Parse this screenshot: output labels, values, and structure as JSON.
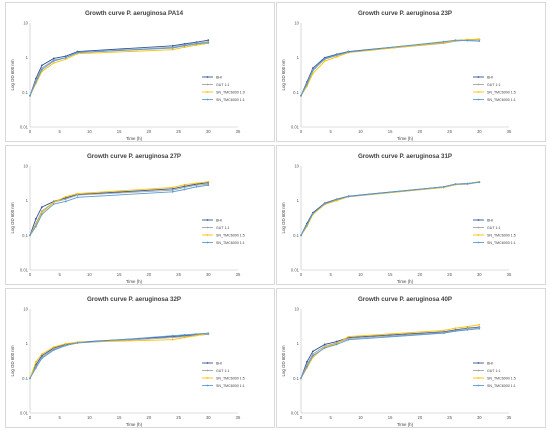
{
  "figure": {
    "charts": [
      {
        "title": "Growth curve P. aeruginosa PA14",
        "legend": [
          "BHI",
          "GUT 1:1",
          "SN_TMC6000 1:9",
          "SN_TMC6000 1:1"
        ]
      },
      {
        "title": "Growth curve P. aeruginosa 23P",
        "legend": [
          "BHI",
          "GUT 1:1",
          "SN_TMC6000 1:5",
          "SN_TMC6000 1:1"
        ]
      },
      {
        "title": "Growth curve P. aeruginosa 27P",
        "legend": [
          "BHI",
          "GUT 1:1",
          "SN_TMC6000 1:5",
          "SN_TMC6000 1:1"
        ]
      },
      {
        "title": "Growth curve P. aeruginosa 31P",
        "legend": [
          "BHI",
          "GUT 1:1",
          "SN_TMC6000 1:5",
          "SN_TMC6000 1:1"
        ]
      },
      {
        "title": "Growth curve P. aeruginosa 32P",
        "legend": [
          "BHI",
          "GUT 1:1",
          "SN_TMC6000 1:5",
          "SN_TMC6000 1:1"
        ]
      },
      {
        "title": "Growth curve P. aeruginosa 40P",
        "legend": [
          "BHI",
          "GUT 1:1",
          "SN_TMC6000 1:5",
          "SN_TMC6000 1:1"
        ]
      }
    ]
  },
  "chart_data": [
    {
      "type": "line",
      "title": "Growth curve P. aeruginosa PA14",
      "xlabel": "Time (h)",
      "ylabel": "Log OD 600 nm",
      "xlim": [
        0,
        35
      ],
      "ylim": [
        0.01,
        10
      ],
      "yscale": "log",
      "x": [
        0,
        1,
        2,
        4,
        6,
        8,
        24,
        26,
        28,
        30
      ],
      "series": [
        {
          "name": "BHI",
          "values": [
            0.08,
            0.25,
            0.6,
            0.95,
            1.1,
            1.5,
            2.2,
            2.5,
            2.8,
            3.2
          ]
        },
        {
          "name": "GUT 1:1",
          "values": [
            0.08,
            0.22,
            0.5,
            0.85,
            1.0,
            1.4,
            2.0,
            2.3,
            2.6,
            2.9
          ]
        },
        {
          "name": "SN_TMC6000 1:9",
          "values": [
            0.08,
            0.18,
            0.4,
            0.7,
            0.9,
            1.3,
            1.7,
            2.0,
            2.3,
            2.6
          ]
        },
        {
          "name": "SN_TMC6000 1:1",
          "values": [
            0.08,
            0.2,
            0.45,
            0.8,
            1.0,
            1.4,
            1.9,
            2.2,
            2.5,
            2.7
          ]
        }
      ],
      "colors": [
        "#2f5597",
        "#a5a5a5",
        "#ffc000",
        "#5b9bd5"
      ],
      "xticks": [
        0,
        5,
        10,
        15,
        20,
        25,
        30,
        35
      ],
      "yticks": [
        0.01,
        0.1,
        1,
        10
      ],
      "ytick_labels": [
        "0.01",
        "0.1",
        "1",
        "10"
      ],
      "legend_position": "right",
      "grid": false
    },
    {
      "type": "line",
      "title": "Growth curve P. aeruginosa 23P",
      "xlabel": "Time (h)",
      "ylabel": "Log OD 600 nm",
      "xlim": [
        0,
        35
      ],
      "ylim": [
        0.01,
        10
      ],
      "yscale": "log",
      "x": [
        0,
        1,
        2,
        4,
        6,
        8,
        24,
        26,
        28,
        30
      ],
      "series": [
        {
          "name": "BHI",
          "values": [
            0.08,
            0.2,
            0.5,
            1.0,
            1.25,
            1.5,
            2.8,
            3.1,
            3.3,
            3.4
          ]
        },
        {
          "name": "GUT 1:1",
          "values": [
            0.08,
            0.18,
            0.45,
            0.9,
            1.15,
            1.45,
            2.6,
            3.0,
            3.2,
            3.3
          ]
        },
        {
          "name": "SN_TMC6000 1:5",
          "values": [
            0.08,
            0.15,
            0.35,
            0.8,
            1.05,
            1.4,
            2.7,
            3.1,
            3.3,
            3.4
          ]
        },
        {
          "name": "SN_TMC6000 1:1",
          "values": [
            0.08,
            0.17,
            0.42,
            0.95,
            1.2,
            1.45,
            2.9,
            3.2,
            3.1,
            3.0
          ]
        }
      ],
      "colors": [
        "#2f5597",
        "#a5a5a5",
        "#ffc000",
        "#5b9bd5"
      ],
      "xticks": [
        0,
        5,
        10,
        15,
        20,
        25,
        30,
        35
      ],
      "yticks": [
        0.01,
        0.1,
        1,
        10
      ],
      "ytick_labels": [
        "0.01",
        "0.1",
        "1",
        "10"
      ],
      "legend_position": "right",
      "grid": false
    },
    {
      "type": "line",
      "title": "Growth curve P. aeruginosa 27P",
      "xlabel": "Time (h)",
      "ylabel": "Log OD 600 nm",
      "xlim": [
        0,
        35
      ],
      "ylim": [
        0.01,
        10
      ],
      "yscale": "log",
      "x": [
        0,
        1,
        2,
        4,
        6,
        8,
        24,
        26,
        28,
        30
      ],
      "series": [
        {
          "name": "BHI",
          "values": [
            0.1,
            0.3,
            0.65,
            0.95,
            1.2,
            1.5,
            2.2,
            2.6,
            3.0,
            3.3
          ]
        },
        {
          "name": "GUT 1:1",
          "values": [
            0.1,
            0.22,
            0.5,
            0.9,
            1.1,
            1.45,
            2.0,
            2.4,
            2.8,
            3.0
          ]
        },
        {
          "name": "SN_TMC6000 1:5",
          "values": [
            0.1,
            0.2,
            0.45,
            0.9,
            1.3,
            1.6,
            2.4,
            2.9,
            3.2,
            3.5
          ]
        },
        {
          "name": "SN_TMC6000 1:1",
          "values": [
            0.1,
            0.18,
            0.4,
            0.8,
            0.95,
            1.25,
            1.8,
            2.1,
            2.5,
            2.8
          ]
        }
      ],
      "colors": [
        "#2f5597",
        "#a5a5a5",
        "#ffc000",
        "#5b9bd5"
      ],
      "xticks": [
        0,
        5,
        10,
        15,
        20,
        25,
        30,
        35
      ],
      "yticks": [
        0.01,
        0.1,
        1,
        10
      ],
      "ytick_labels": [
        "0.01",
        "0.1",
        "1",
        "10"
      ],
      "legend_position": "right",
      "grid": false
    },
    {
      "type": "line",
      "title": "Growth curve P. aeruginosa 31P",
      "xlabel": "Time (h)",
      "ylabel": "Log OD 600 nm",
      "xlim": [
        0,
        35
      ],
      "ylim": [
        0.01,
        10
      ],
      "yscale": "log",
      "x": [
        0,
        1,
        2,
        4,
        6,
        8,
        24,
        26,
        28,
        30
      ],
      "series": [
        {
          "name": "BHI",
          "values": [
            0.1,
            0.22,
            0.45,
            0.85,
            1.1,
            1.35,
            2.5,
            3.0,
            3.1,
            3.5
          ]
        },
        {
          "name": "GUT 1:1",
          "values": [
            0.1,
            0.2,
            0.42,
            0.8,
            1.05,
            1.3,
            2.4,
            2.9,
            3.0,
            3.4
          ]
        },
        {
          "name": "SN_TMC6000 1:5",
          "values": [
            0.1,
            0.18,
            0.4,
            0.78,
            1.0,
            1.3,
            2.4,
            2.9,
            3.1,
            3.5
          ]
        },
        {
          "name": "SN_TMC6000 1:1",
          "values": [
            0.1,
            0.2,
            0.43,
            0.82,
            1.08,
            1.32,
            2.5,
            3.0,
            3.1,
            3.4
          ]
        }
      ],
      "colors": [
        "#2f5597",
        "#a5a5a5",
        "#ffc000",
        "#5b9bd5"
      ],
      "xticks": [
        0,
        5,
        10,
        15,
        20,
        25,
        30,
        35
      ],
      "yticks": [
        0.01,
        0.1,
        1,
        10
      ],
      "ytick_labels": [
        "0.01",
        "0.1",
        "1",
        "10"
      ],
      "legend_position": "right",
      "grid": false
    },
    {
      "type": "line",
      "title": "Growth curve P. aeruginosa 32P",
      "xlabel": "Time (h)",
      "ylabel": "Log OD 600 nm",
      "xlim": [
        0,
        35
      ],
      "ylim": [
        0.01,
        10
      ],
      "yscale": "log",
      "x": [
        0,
        1,
        2,
        4,
        6,
        8,
        24,
        26,
        28,
        30
      ],
      "series": [
        {
          "name": "BHI",
          "values": [
            0.1,
            0.25,
            0.45,
            0.75,
            0.95,
            1.1,
            1.6,
            1.7,
            1.8,
            1.9
          ]
        },
        {
          "name": "GUT 1:1",
          "values": [
            0.1,
            0.22,
            0.4,
            0.7,
            0.9,
            1.05,
            1.5,
            1.6,
            1.75,
            1.85
          ]
        },
        {
          "name": "SN_TMC6000 1:5",
          "values": [
            0.1,
            0.3,
            0.5,
            0.8,
            1.0,
            1.1,
            1.3,
            1.5,
            1.7,
            2.0
          ]
        },
        {
          "name": "SN_TMC6000 1:1",
          "values": [
            0.1,
            0.2,
            0.38,
            0.65,
            0.88,
            1.05,
            1.7,
            1.8,
            1.9,
            2.0
          ]
        }
      ],
      "colors": [
        "#2f5597",
        "#a5a5a5",
        "#ffc000",
        "#5b9bd5"
      ],
      "xticks": [
        0,
        5,
        10,
        15,
        20,
        25,
        30,
        35
      ],
      "yticks": [
        0.01,
        0.1,
        1,
        10
      ],
      "ytick_labels": [
        "0.01",
        "0.1",
        "1",
        "10"
      ],
      "legend_position": "right",
      "grid": false
    },
    {
      "type": "line",
      "title": "Growth curve P. aeruginosa 40P",
      "xlabel": "Time (h)",
      "ylabel": "Log OD 600 nm",
      "xlim": [
        0,
        35
      ],
      "ylim": [
        0.01,
        10
      ],
      "yscale": "log",
      "x": [
        0,
        1,
        2,
        4,
        6,
        8,
        24,
        26,
        28,
        30
      ],
      "series": [
        {
          "name": "BHI",
          "values": [
            0.1,
            0.3,
            0.6,
            0.95,
            1.15,
            1.5,
            2.2,
            2.5,
            2.8,
            3.0
          ]
        },
        {
          "name": "GUT 1:1",
          "values": [
            0.1,
            0.25,
            0.5,
            0.85,
            1.05,
            1.4,
            2.1,
            2.4,
            2.7,
            2.9
          ]
        },
        {
          "name": "SN_TMC6000 1:5",
          "values": [
            0.1,
            0.2,
            0.4,
            0.8,
            1.0,
            1.6,
            2.4,
            2.8,
            3.1,
            3.5
          ]
        },
        {
          "name": "SN_TMC6000 1:1",
          "values": [
            0.1,
            0.22,
            0.45,
            0.75,
            0.95,
            1.3,
            2.0,
            2.3,
            2.5,
            2.7
          ]
        }
      ],
      "colors": [
        "#2f5597",
        "#a5a5a5",
        "#ffc000",
        "#5b9bd5"
      ],
      "xticks": [
        0,
        5,
        10,
        15,
        20,
        25,
        30,
        35
      ],
      "yticks": [
        0.01,
        0.1,
        1,
        10
      ],
      "ytick_labels": [
        "0.01",
        "0.1",
        "1",
        "10"
      ],
      "legend_position": "right",
      "grid": false
    }
  ]
}
